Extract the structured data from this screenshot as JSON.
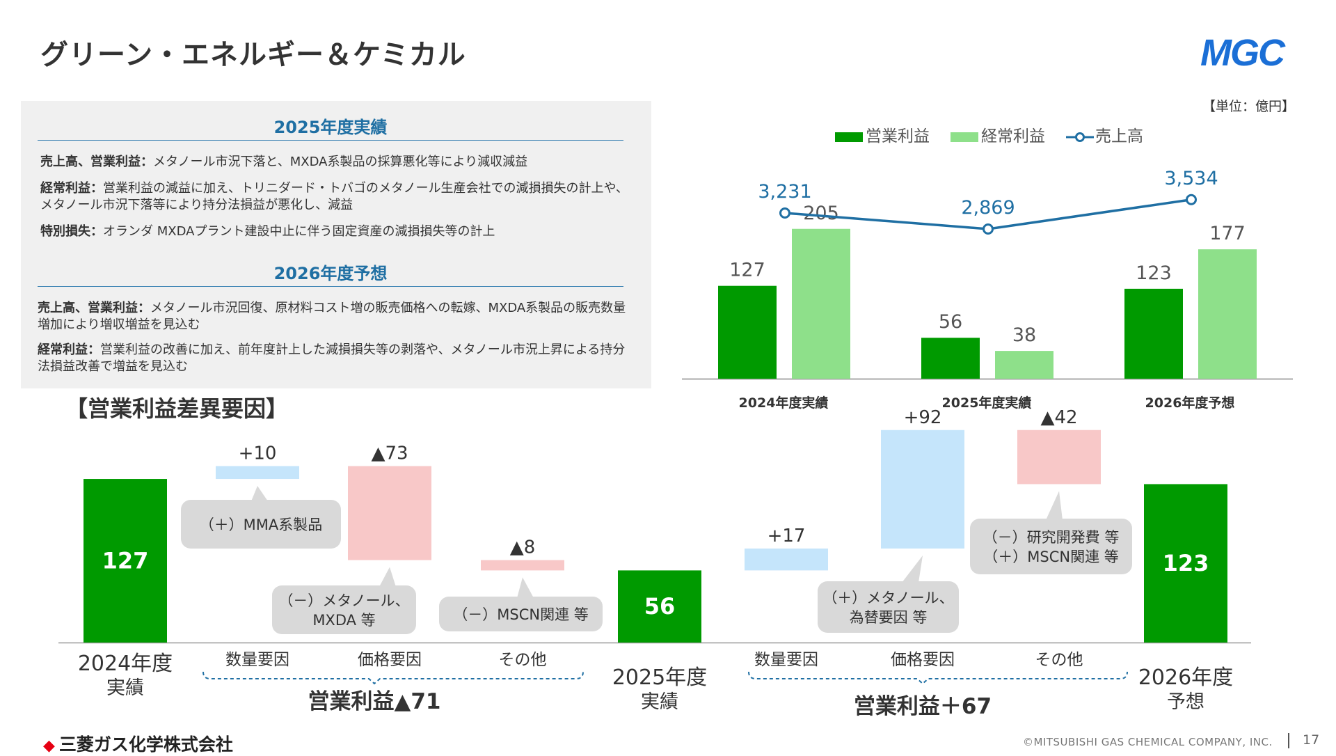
{
  "header": {
    "title": "グリーン・エネルギー＆ケミカル",
    "logo_text": "MGC",
    "unit": "【単位：億円】"
  },
  "summary": {
    "actual_title": "2025年度実績",
    "actual_items": [
      {
        "label": "売上高、営業利益：",
        "text": "メタノール市況下落と、MXDA系製品の採算悪化等により減収減益"
      },
      {
        "label": "経常利益：",
        "text": "営業利益の減益に加え、トリニダード・トバゴのメタノール生産会社での減損損失の計上や、メタノール市況下落等により持分法損益が悪化し、減益"
      },
      {
        "label": "特別損失：",
        "text": "オランダ MXDAプラント建設中止に伴う固定資産の減損損失等の計上"
      }
    ],
    "forecast_title": "2026年度予想",
    "forecast_items": [
      {
        "label": "売上高、営業利益：",
        "text": "メタノール市況回復、原材料コスト増の販売価格への転嫁、MXDA系製品の販売数量増加により増収増益を見込む"
      },
      {
        "label": "経常利益：",
        "text": "営業利益の改善に加え、前年度計上した減損損失等の剥落や、メタノール市況上昇による持分法損益改善で増益を見込む"
      }
    ]
  },
  "chart_data": [
    {
      "type": "bar",
      "categories": [
        "2024年度実績",
        "2025年度実績",
        "2026年度予想"
      ],
      "series": [
        {
          "name": "営業利益",
          "type": "bar",
          "values": [
            127,
            56,
            123
          ],
          "color": "#009a00"
        },
        {
          "name": "経常利益",
          "type": "bar",
          "values": [
            205,
            38,
            177
          ],
          "color": "#8ee08a"
        },
        {
          "name": "売上高",
          "type": "line",
          "values": [
            3231,
            2869,
            3534
          ],
          "labels": [
            "3,231",
            "2,869",
            "3,534"
          ],
          "color": "#1f6fa3"
        }
      ],
      "legend": "top"
    },
    {
      "type": "bar",
      "title": "【営業利益差異要因】",
      "bars": [
        {
          "kind": "total",
          "label": "2024年度実績",
          "value": 127,
          "value_label": "127"
        },
        {
          "kind": "delta",
          "label": "数量要因",
          "value": 10,
          "value_label": "+10",
          "callout": [
            "（＋）MMA系製品"
          ]
        },
        {
          "kind": "delta",
          "label": "価格要因",
          "value": -73,
          "value_label": "▲73",
          "callout": [
            "（－）メタノール、",
            "MXDA 等"
          ]
        },
        {
          "kind": "delta",
          "label": "その他",
          "value": -8,
          "value_label": "▲8",
          "callout": [
            "（－）MSCN関連 等"
          ]
        },
        {
          "kind": "total",
          "label": "2025年度実績",
          "value": 56,
          "value_label": "56"
        },
        {
          "kind": "delta",
          "label": "数量要因",
          "value": 17,
          "value_label": "+17"
        },
        {
          "kind": "delta",
          "label": "価格要因",
          "value": 92,
          "value_label": "+92",
          "callout": [
            "（＋）メタノール、",
            "為替要因 等"
          ]
        },
        {
          "kind": "delta",
          "label": "その他",
          "value": -42,
          "value_label": "▲42",
          "callout": [
            "（－）研究開発費 等",
            "（＋）MSCN関連 等"
          ]
        },
        {
          "kind": "total",
          "label": "2026年度予想",
          "value": 123,
          "value_label": "123"
        }
      ],
      "group_labels": [
        "営業利益▲71",
        "営業利益＋67"
      ],
      "colors": {
        "total": "#009a00",
        "increase": "#c5e5fb",
        "decrease": "#f8c8c8",
        "callout": "#d9d9d9"
      }
    }
  ],
  "footer": {
    "company": "三菱ガス化学株式会社",
    "copyright": "©MITSUBISHI GAS CHEMICAL COMPANY, INC.",
    "page": "17"
  }
}
